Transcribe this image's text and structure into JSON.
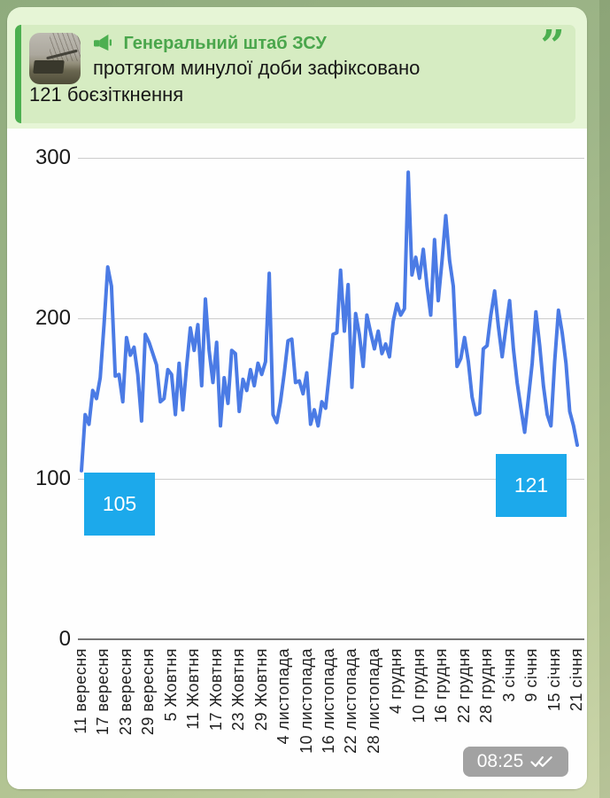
{
  "message": {
    "channel_name": "Генеральний штаб ЗСУ",
    "text_line1": "протягом минулої доби зафіксовано",
    "text_line2": "121 боєзіткнення",
    "quote_mark": "”",
    "timestamp": "08:25",
    "read_receipt": "double-check"
  },
  "colors": {
    "accent_green": "#4caf50",
    "channel_name_green": "#4aa64c",
    "bubble_green": "#e6f5d6",
    "quote_bg_green": "#d6ecc2",
    "series_blue": "#4b7be5",
    "annotation_cyan": "#1ca9eb",
    "chart_bg": "#fefefe"
  },
  "chart_data": {
    "type": "line",
    "title": "",
    "xlabel": "",
    "ylabel": "",
    "ylim": [
      0,
      300
    ],
    "y_ticks": [
      0,
      100,
      200,
      300
    ],
    "grid": true,
    "legend": false,
    "x_tick_interval_days": 6,
    "x_tick_labels": [
      "11 вересня",
      "17 вересня",
      "23 вересня",
      "29 вересня",
      "5 Жовтня",
      "11 Жовтня",
      "17 Жовтня",
      "23 Жовтня",
      "29 Жовтня",
      "4 листопада",
      "10 листопада",
      "16 листопада",
      "22 листопада",
      "28 листопада",
      "4 грудня",
      "10 грудня",
      "16 грудня",
      "22 грудня",
      "28 грудня",
      "3 січня",
      "9 січня",
      "15 січня",
      "21 січня"
    ],
    "values": [
      105,
      140,
      134,
      155,
      150,
      163,
      196,
      232,
      220,
      164,
      165,
      148,
      188,
      177,
      182,
      165,
      136,
      190,
      185,
      178,
      171,
      148,
      150,
      168,
      165,
      140,
      172,
      143,
      170,
      194,
      180,
      196,
      158,
      212,
      180,
      160,
      185,
      133,
      163,
      147,
      180,
      178,
      142,
      162,
      155,
      168,
      158,
      172,
      165,
      173,
      228,
      140,
      135,
      148,
      166,
      186,
      187,
      160,
      161,
      153,
      166,
      134,
      143,
      133,
      148,
      144,
      166,
      190,
      191,
      230,
      192,
      221,
      157,
      203,
      190,
      170,
      202,
      191,
      181,
      192,
      178,
      184,
      176,
      198,
      209,
      202,
      206,
      291,
      227,
      238,
      225,
      243,
      220,
      202,
      249,
      211,
      236,
      264,
      236,
      220,
      170,
      175,
      188,
      173,
      151,
      140,
      141,
      181,
      183,
      202,
      217,
      195,
      176,
      194,
      211,
      181,
      160,
      144,
      129,
      150,
      172,
      204,
      183,
      158,
      140,
      133,
      173,
      205,
      191,
      172,
      142,
      133,
      121
    ],
    "annotations": [
      {
        "label": "105",
        "index": 0
      },
      {
        "label": "121",
        "index": 132
      }
    ]
  }
}
